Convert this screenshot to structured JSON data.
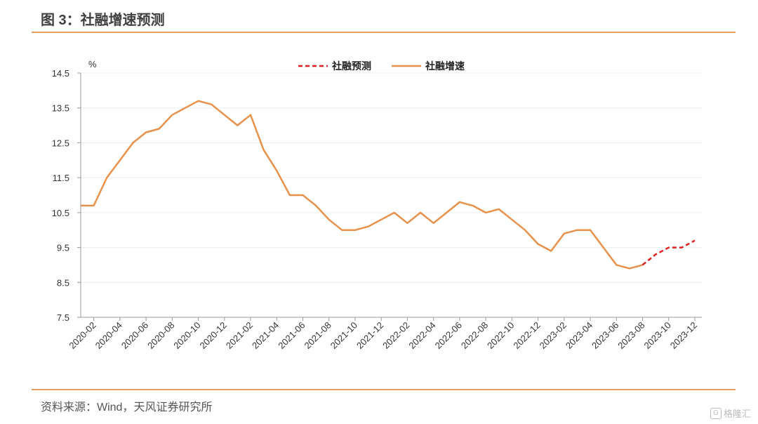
{
  "header": {
    "title": "图 3：社融增速预测"
  },
  "footer": {
    "source": "资料来源：Wind，天风证券研究所"
  },
  "watermark": {
    "text": "格隆汇",
    "icon": "G"
  },
  "colors": {
    "actual": "#e8914b",
    "forecast": "#e02020",
    "rule": "#e8a060",
    "grid": "#eeeeee"
  },
  "chart_data": {
    "type": "line",
    "yunit": "%",
    "ylim": [
      7.5,
      14.5
    ],
    "yticks": [
      14.5,
      13.5,
      12.5,
      11.5,
      10.5,
      9.5,
      8.5,
      7.5
    ],
    "xtick_labels": [
      "2020-02",
      "2020-04",
      "2020-06",
      "2020-08",
      "2020-10",
      "2020-12",
      "2021-02",
      "2021-04",
      "2021-06",
      "2021-08",
      "2021-10",
      "2021-12",
      "2022-02",
      "2022-04",
      "2022-06",
      "2022-08",
      "2022-10",
      "2022-12",
      "2023-02",
      "2023-04",
      "2023-06",
      "2023-08",
      "2023-10",
      "2023-12"
    ],
    "grid": true,
    "legend_position": "top-center",
    "series": [
      {
        "name": "社融预测",
        "style": "dashed",
        "color": "#e02020",
        "x": [
          "2023-08",
          "2023-09",
          "2023-10",
          "2023-11",
          "2023-12"
        ],
        "values": [
          9.0,
          9.3,
          9.5,
          9.5,
          9.7
        ]
      },
      {
        "name": "社融增速",
        "style": "solid",
        "color": "#e8914b",
        "x": [
          "2020-01",
          "2020-02",
          "2020-03",
          "2020-04",
          "2020-05",
          "2020-06",
          "2020-07",
          "2020-08",
          "2020-09",
          "2020-10",
          "2020-11",
          "2020-12",
          "2021-01",
          "2021-02",
          "2021-03",
          "2021-04",
          "2021-05",
          "2021-06",
          "2021-07",
          "2021-08",
          "2021-09",
          "2021-10",
          "2021-11",
          "2021-12",
          "2022-01",
          "2022-02",
          "2022-03",
          "2022-04",
          "2022-05",
          "2022-06",
          "2022-07",
          "2022-08",
          "2022-09",
          "2022-10",
          "2022-11",
          "2022-12",
          "2023-01",
          "2023-02",
          "2023-03",
          "2023-04",
          "2023-05",
          "2023-06",
          "2023-07",
          "2023-08"
        ],
        "values": [
          10.7,
          10.7,
          11.5,
          12.0,
          12.5,
          12.8,
          12.9,
          13.3,
          13.5,
          13.7,
          13.6,
          13.3,
          13.0,
          13.3,
          12.3,
          11.7,
          11.0,
          11.0,
          10.7,
          10.3,
          10.0,
          10.0,
          10.1,
          10.3,
          10.5,
          10.2,
          10.5,
          10.2,
          10.5,
          10.8,
          10.7,
          10.5,
          10.6,
          10.3,
          10.0,
          9.6,
          9.4,
          9.9,
          10.0,
          10.0,
          9.5,
          9.0,
          8.9,
          9.0
        ]
      }
    ]
  }
}
